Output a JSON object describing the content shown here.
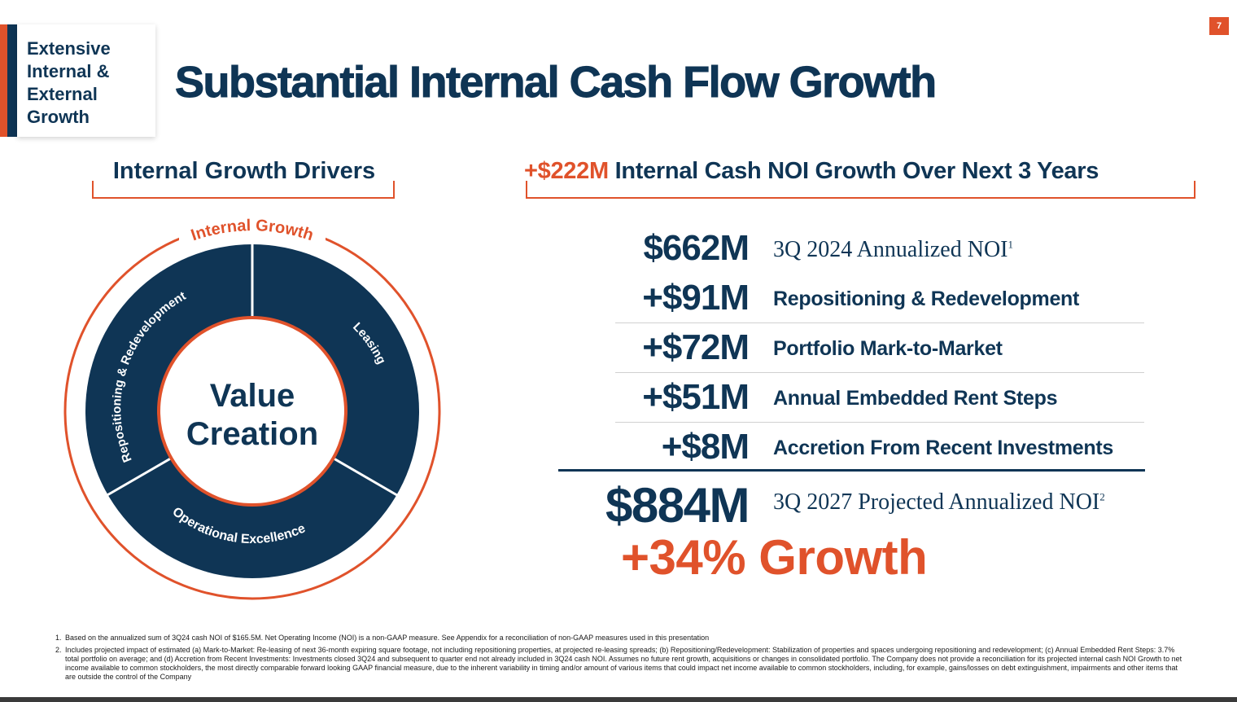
{
  "tag": {
    "line1": "Extensive",
    "line2": "Internal &",
    "line3": "External",
    "line4": "Growth"
  },
  "page_number": "7",
  "title": "Substantial Internal Cash Flow Growth",
  "left_section": {
    "heading": "Internal Growth Drivers",
    "wheel": {
      "ring_label": "Internal Growth",
      "center_line1": "Value",
      "center_line2": "Creation",
      "segments": [
        "Repositioning & Redevelopment",
        "Leasing",
        "Operational Excellence"
      ]
    }
  },
  "right_section": {
    "heading_highlight": "+$222M",
    "heading_rest": " Internal Cash NOI Growth Over Next 3 Years",
    "rows": [
      {
        "value": "$662M",
        "label": "3Q 2024 Annualized NOI",
        "sup": "1"
      },
      {
        "value": "+$91M",
        "label": "Repositioning & Redevelopment"
      },
      {
        "value": "+$72M",
        "label": "Portfolio Mark-to-Market"
      },
      {
        "value": "+$51M",
        "label": "Annual Embedded Rent Steps"
      },
      {
        "value": "+$8M",
        "label": "Accretion From Recent Investments"
      },
      {
        "value": "$884M",
        "label": "3Q 2027 Projected Annualized NOI",
        "sup": "2"
      }
    ],
    "growth": "+34% Growth"
  },
  "footnotes": [
    {
      "num": "1.",
      "text": "Based on the annualized sum of 3Q24 cash NOI of $165.5M. Net Operating Income (NOI) is a non-GAAP measure. See Appendix for a reconciliation of non-GAAP measures used in this presentation"
    },
    {
      "num": "2.",
      "text": "Includes projected impact of estimated (a) Mark-to-Market: Re-leasing of next 36-month expiring square footage, not including repositioning properties, at projected re-leasing spreads; (b) Repositioning/Redevelopment: Stabilization of properties and spaces undergoing repositioning and redevelopment; (c) Annual Embedded Rent Steps: 3.7% total portfolio on average; and (d) Accretion from Recent Investments: Investments closed 3Q24 and subsequent to quarter end not already included in 3Q24 cash NOI. Assumes no future rent growth, acquisitions or changes in consolidated portfolio. The Company does not provide a reconciliation for its projected internal cash NOI Growth to net income available to common stockholders, the most directly comparable forward looking GAAP financial measure, due to the inherent variability in timing and/or amount of various items that could impact net income available to common stockholders, including, for example, gains/losses on debt extinguishment, impairments and other items that are outside the control of the Company"
    }
  ],
  "colors": {
    "navy": "#0f3555",
    "orange": "#e0522b"
  }
}
